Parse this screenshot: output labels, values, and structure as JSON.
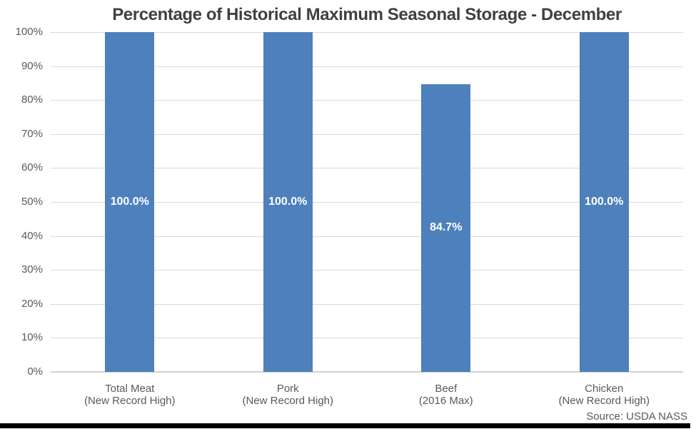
{
  "title": "Percentage of Historical Maximum Seasonal Storage - December",
  "source_note": "Source: USDA NASS",
  "colors": {
    "bar_fill": "#4e80bc",
    "title_text": "#404040",
    "axis_text": "#595959",
    "gridline": "#d9d9d9",
    "axis_line": "#d1d1d1",
    "data_label_text": "#ffffff",
    "bottom_bar": "#000000"
  },
  "chart_data": {
    "type": "bar",
    "title": "Percentage of Historical Maximum Seasonal Storage - December",
    "categories": [
      "Total Meat",
      "Pork",
      "Beef",
      "Chicken"
    ],
    "category_sublabels": [
      "(New Record High)",
      "(New Record High)",
      "(2016 Max)",
      "(New Record High)"
    ],
    "values": [
      100.0,
      100.0,
      84.7,
      100.0
    ],
    "value_labels": [
      "100.0%",
      "100.0%",
      "84.7%",
      "100.0%"
    ],
    "ylim": [
      0,
      100
    ],
    "ytick_step": 10,
    "ytick_labels": [
      "0%",
      "10%",
      "20%",
      "30%",
      "40%",
      "50%",
      "60%",
      "70%",
      "80%",
      "90%",
      "100%"
    ],
    "grid": true,
    "legend": false,
    "data_label_position": "inside-center",
    "source": "Source: USDA NASS"
  }
}
